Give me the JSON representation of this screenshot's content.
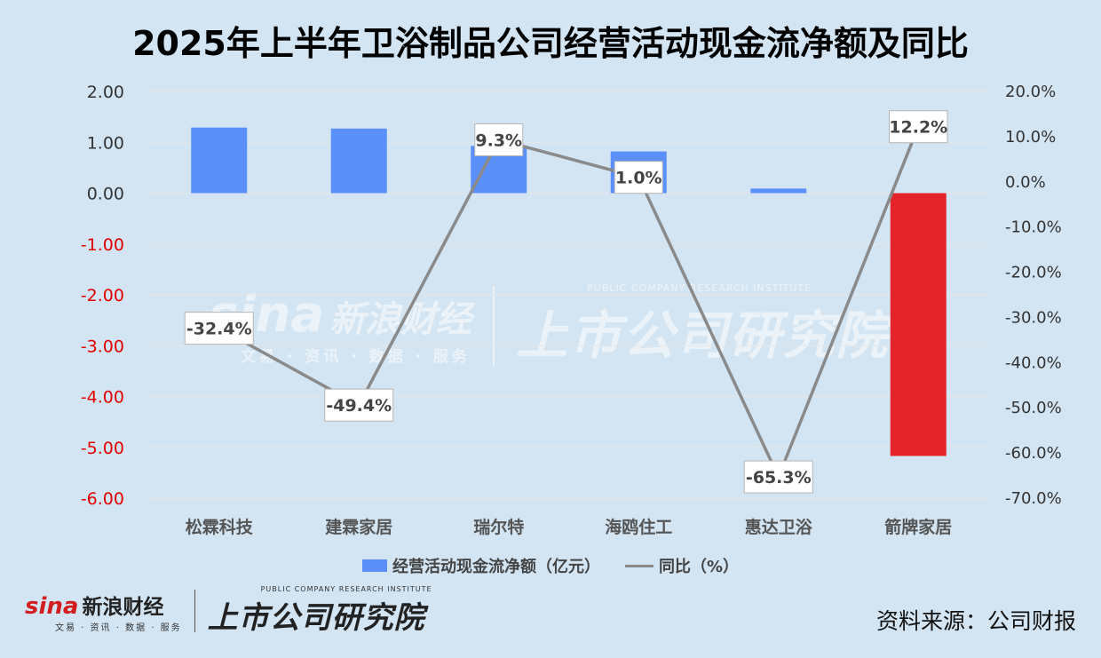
{
  "title": "2025年上半年卫浴制品公司经营活动现金流净额及同比",
  "chart_data": {
    "type": "bar",
    "title": "2025年上半年卫浴制品公司经营活动现金流净额及同比",
    "categories": [
      "松霖科技",
      "建霖家居",
      "瑞尔特",
      "海鸥住工",
      "惠达卫浴",
      "箭牌家居"
    ],
    "series": [
      {
        "name": "经营活动现金流净额（亿元）",
        "type": "bar",
        "axis": "left",
        "values": [
          1.29,
          1.27,
          0.93,
          0.82,
          0.09,
          -5.17
        ],
        "colors": [
          "#5b8ff9",
          "#5b8ff9",
          "#5b8ff9",
          "#5b8ff9",
          "#5b8ff9",
          "#e5232a"
        ]
      },
      {
        "name": "同比（%）",
        "type": "line",
        "axis": "right",
        "values": [
          -32.4,
          -49.4,
          9.3,
          1.0,
          -65.3,
          12.2
        ],
        "labels": [
          "-32.4%",
          "-49.4%",
          "9.3%",
          "1.0%",
          "-65.3%",
          "12.2%"
        ],
        "color": "#8a8a8a"
      }
    ],
    "y_left": {
      "min": -6,
      "max": 2,
      "ticks": [
        "2.00",
        "1.00",
        "0.00",
        "-1.00",
        "-2.00",
        "-3.00",
        "-4.00",
        "-5.00",
        "-6.00"
      ],
      "negative_color": "#e00000"
    },
    "y_right": {
      "min": -70,
      "max": 20,
      "ticks": [
        "20.0%",
        "10.0%",
        "0.0%",
        "-10.0%",
        "-20.0%",
        "-30.0%",
        "-40.0%",
        "-50.0%",
        "-60.0%",
        "-70.0%"
      ]
    },
    "grid": true,
    "legend_position": "bottom"
  },
  "legend": {
    "bar_label": "经营活动现金流净额（亿元）",
    "line_label": "同比（%）"
  },
  "footer": {
    "sina_word": "sina",
    "sina_cn": "新浪财经",
    "sina_sub": "文易 · 资讯 · 数据 · 服务",
    "institute_en": "PUBLIC COMPANY RESEARCH INSTITUTE",
    "institute_cn": "上市公司研究院",
    "source": "资料来源：公司财报"
  },
  "colors": {
    "background": "#d3e5f3",
    "bar": "#5b8ff9",
    "bar_negative": "#e5232a",
    "line": "#8a8a8a"
  }
}
